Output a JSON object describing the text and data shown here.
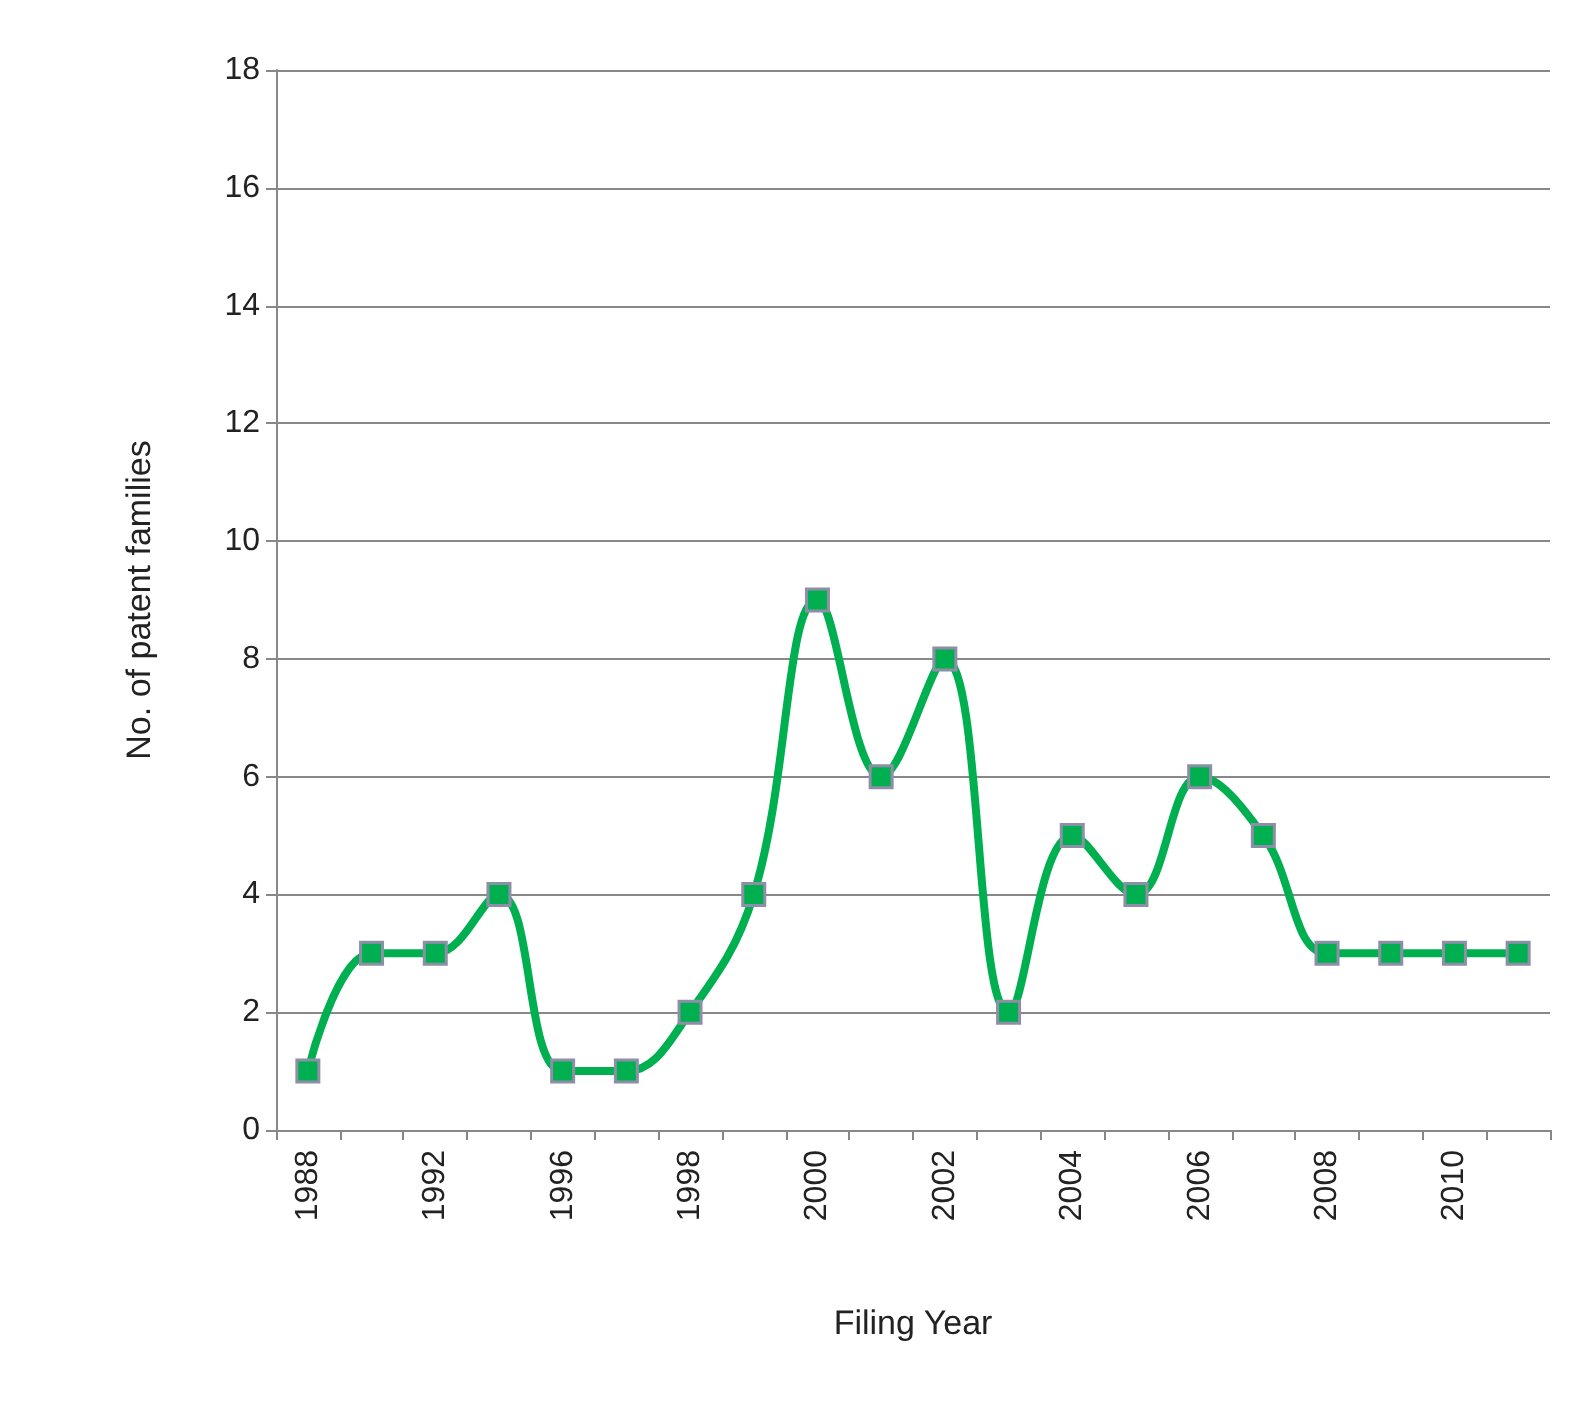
{
  "chart_data": {
    "type": "line",
    "xlabel": "Filing Year",
    "ylabel": "No. of patent families",
    "categories": [
      "1988",
      null,
      "1992",
      null,
      "1996",
      null,
      "1998",
      null,
      "2000",
      null,
      "2002",
      null,
      "2004",
      null,
      "2006",
      null,
      "2008",
      null,
      "2010",
      null
    ],
    "series": [
      {
        "color": "#00b050",
        "values": [
          1,
          3,
          3,
          4,
          1,
          1,
          2,
          4,
          9,
          6,
          8,
          2,
          5,
          4,
          6,
          5,
          3,
          3,
          3,
          3
        ]
      }
    ],
    "ylim": [
      0,
      18
    ],
    "yticks": [
      0,
      2,
      4,
      6,
      8,
      10,
      12,
      14,
      16,
      18
    ],
    "grid": "y",
    "marker": "square",
    "line_style": "solid"
  }
}
